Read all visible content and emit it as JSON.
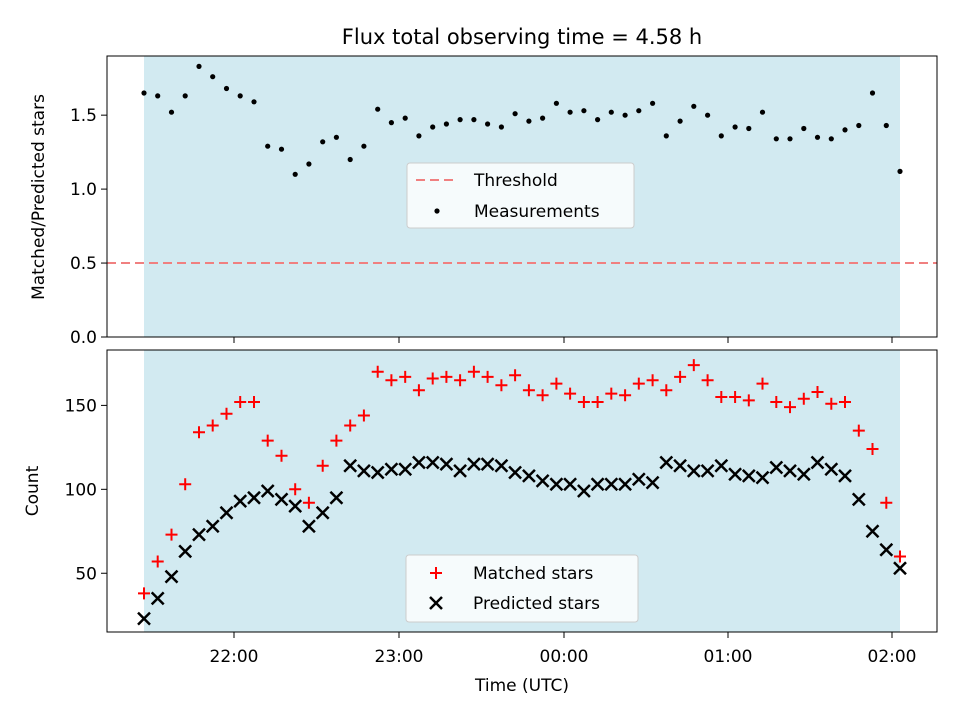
{
  "title": "Flux total observing time = 4.58 h",
  "chart_data": [
    {
      "type": "scatter",
      "ylabel": "Matched/Predicted stars",
      "ylim": [
        0,
        1.9
      ],
      "yticks": [
        0.0,
        0.5,
        1.0,
        1.5
      ],
      "ytick_labels": [
        "0.0",
        "0.5",
        "1.0",
        "1.5"
      ],
      "legend_placement": "center",
      "shaded_color": "#add8e6",
      "threshold": {
        "name": "Threshold",
        "value": 0.5,
        "color": "#f08080"
      },
      "series": [
        {
          "name": "Measurements",
          "color": "#000000",
          "marker": "dot",
          "values": [
            1.65,
            1.63,
            1.52,
            1.63,
            1.83,
            1.76,
            1.68,
            1.63,
            1.59,
            1.29,
            1.27,
            1.1,
            1.17,
            1.32,
            1.35,
            1.2,
            1.29,
            1.54,
            1.45,
            1.48,
            1.36,
            1.42,
            1.44,
            1.47,
            1.47,
            1.44,
            1.42,
            1.51,
            1.46,
            1.48,
            1.58,
            1.52,
            1.53,
            1.47,
            1.52,
            1.5,
            1.53,
            1.58,
            1.36,
            1.46,
            1.56,
            1.5,
            1.36,
            1.42,
            1.41,
            1.52,
            1.34,
            1.34,
            1.41,
            1.35,
            1.34,
            1.4,
            1.43,
            1.65,
            1.43,
            1.12
          ]
        }
      ]
    },
    {
      "type": "scatter",
      "xlabel": "Time (UTC)",
      "ylabel": "Count",
      "ylim": [
        15,
        183
      ],
      "yticks": [
        50,
        100,
        150
      ],
      "ytick_labels": [
        "50",
        "100",
        "150"
      ],
      "xtick_labels": [
        "22:00",
        "23:00",
        "00:00",
        "01:00",
        "02:00"
      ],
      "legend_placement": "lower center",
      "shaded_color": "#add8e6",
      "series": [
        {
          "name": "Matched stars",
          "color": "#ff0000",
          "marker": "plus",
          "values": [
            38,
            57,
            73,
            103,
            134,
            138,
            145,
            152,
            152,
            129,
            120,
            100,
            92,
            114,
            129,
            138,
            144,
            170,
            165,
            167,
            159,
            166,
            167,
            165,
            170,
            167,
            162,
            168,
            159,
            156,
            163,
            157,
            152,
            152,
            157,
            156,
            163,
            165,
            159,
            167,
            174,
            165,
            155,
            155,
            153,
            163,
            152,
            149,
            154,
            158,
            151,
            152,
            135,
            124,
            92,
            60
          ]
        },
        {
          "name": "Predicted stars",
          "color": "#000000",
          "marker": "x",
          "values": [
            23,
            35,
            48,
            63,
            73,
            78,
            86,
            93,
            95,
            99,
            94,
            90,
            78,
            86,
            95,
            114,
            111,
            110,
            112,
            112,
            116,
            116,
            115,
            111,
            115,
            115,
            114,
            110,
            108,
            105,
            103,
            103,
            99,
            103,
            103,
            103,
            106,
            104,
            116,
            114,
            111,
            111,
            114,
            109,
            108,
            107,
            113,
            111,
            109,
            116,
            112,
            108,
            94,
            75,
            64,
            53
          ]
        }
      ]
    }
  ]
}
